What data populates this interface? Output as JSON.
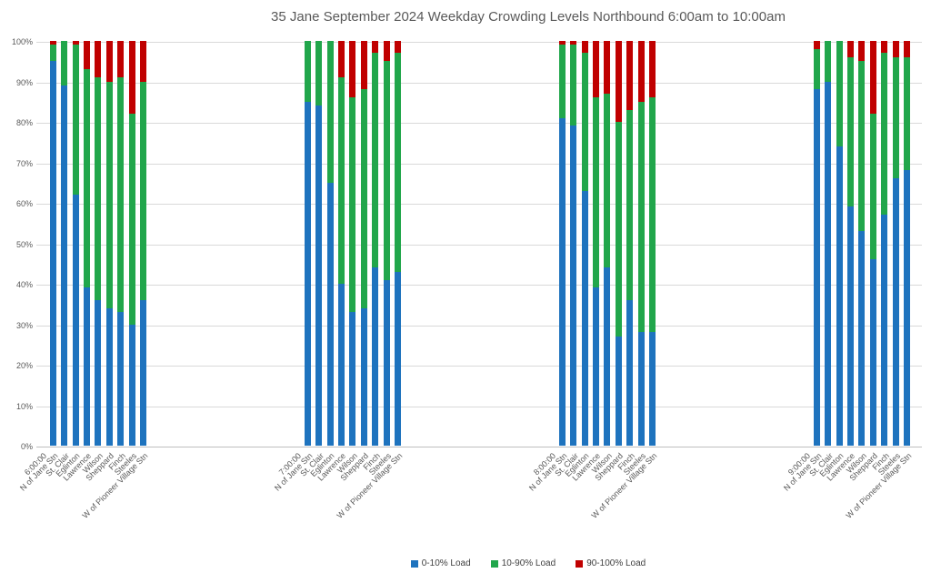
{
  "chart_data": {
    "type": "bar",
    "stacked": true,
    "percent_stacked": true,
    "title": "35 Jane September 2024 Weekday Crowding Levels Northbound 6:00am to 10:00am",
    "y_axis": {
      "min": 0,
      "max": 100,
      "step": 10,
      "suffix": "%"
    },
    "grid": true,
    "legend_position": "bottom",
    "series": [
      {
        "name": "0-10% Load",
        "color": "#1e73be"
      },
      {
        "name": "10-90% Load",
        "color": "#21a64b"
      },
      {
        "name": "90-100% Load",
        "color": "#c00000"
      }
    ],
    "stations": [
      "N of Jane Stn",
      "St. Clair",
      "Eglinton",
      "Lawrence",
      "Wilson",
      "Sheppard",
      "Finch",
      "Steeles",
      "W of Pioneer Village Stn"
    ],
    "groups": [
      {
        "time": "6:00:00",
        "values": [
          [
            95,
            4,
            1
          ],
          [
            89,
            11,
            0
          ],
          [
            62,
            37,
            1
          ],
          [
            39,
            54,
            7
          ],
          [
            36,
            55,
            9
          ],
          [
            34,
            56,
            10
          ],
          [
            33,
            58,
            9
          ],
          [
            30,
            52,
            18
          ],
          [
            36,
            54,
            10
          ]
        ]
      },
      {
        "time": "7:00:00",
        "values": [
          [
            85,
            15,
            0
          ],
          [
            84,
            16,
            0
          ],
          [
            65,
            35,
            0
          ],
          [
            40,
            51,
            9
          ],
          [
            33,
            53,
            14
          ],
          [
            34,
            54,
            12
          ],
          [
            44,
            53,
            3
          ],
          [
            41,
            54,
            5
          ],
          [
            43,
            54,
            3
          ]
        ]
      },
      {
        "time": "8:00:00",
        "values": [
          [
            81,
            18,
            1
          ],
          [
            79,
            20,
            1
          ],
          [
            63,
            34,
            3
          ],
          [
            39,
            47,
            14
          ],
          [
            44,
            43,
            13
          ],
          [
            27,
            53,
            20
          ],
          [
            36,
            47,
            17
          ],
          [
            28,
            57,
            15
          ],
          [
            28,
            58,
            14
          ]
        ]
      },
      {
        "time": "9:00:00",
        "values": [
          [
            88,
            10,
            2
          ],
          [
            90,
            10,
            0
          ],
          [
            74,
            26,
            0
          ],
          [
            59,
            37,
            4
          ],
          [
            53,
            42,
            5
          ],
          [
            46,
            36,
            18
          ],
          [
            57,
            40,
            3
          ],
          [
            66,
            30,
            4
          ],
          [
            68,
            28,
            4
          ]
        ]
      }
    ],
    "colors": {
      "gridline": "#d9d9d9",
      "axis_text": "#595959",
      "title_text": "#595959",
      "legend_text": "#404040"
    }
  }
}
